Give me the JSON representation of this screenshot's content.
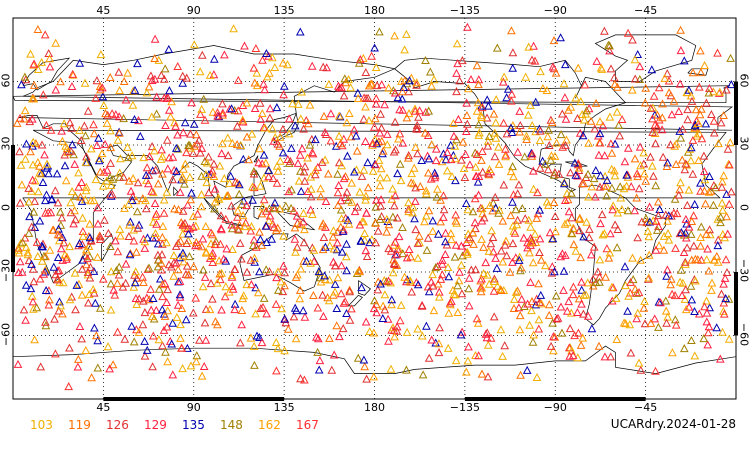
{
  "map": {
    "top_lon_ticks": [
      "45",
      "90",
      "135",
      "180",
      "−135",
      "−90",
      "−45"
    ],
    "bottom_lon_ticks": [
      "45",
      "90",
      "135",
      "180",
      "−135",
      "−90",
      "−45"
    ],
    "lat_ticks": [
      "60",
      "30",
      "0",
      "−30",
      "−60"
    ],
    "lon_range": [
      0,
      360
    ],
    "lat_range": [
      -90,
      90
    ],
    "gridlines": "dotted every 45° longitude, 30° latitude"
  },
  "legend": {
    "items": [
      {
        "label": "103",
        "color": "#f0b000"
      },
      {
        "label": "119",
        "color": "#ff7000"
      },
      {
        "label": "126",
        "color": "#e03030"
      },
      {
        "label": "129",
        "color": "#ff2040"
      },
      {
        "label": "135",
        "color": "#0000b0"
      },
      {
        "label": "148",
        "color": "#a08000"
      },
      {
        "label": "162",
        "color": "#ffa000"
      },
      {
        "label": "167",
        "color": "#ff3030"
      }
    ]
  },
  "footer": {
    "dataset_label": "UCARdry.2024-01-28"
  }
}
